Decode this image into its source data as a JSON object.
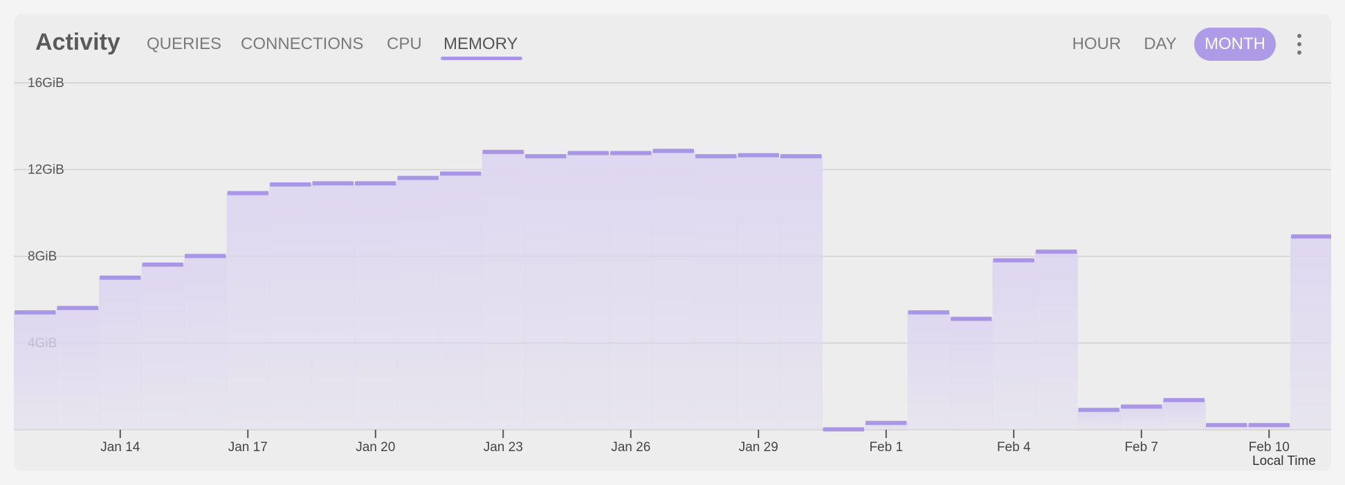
{
  "header": {
    "title": "Activity",
    "tabs": [
      {
        "label": "QUERIES",
        "active": false
      },
      {
        "label": "CONNECTIONS",
        "active": false
      },
      {
        "label": "CPU",
        "active": false
      },
      {
        "label": "MEMORY",
        "active": true
      }
    ],
    "ranges": [
      {
        "label": "HOUR",
        "active": false
      },
      {
        "label": "DAY",
        "active": false
      },
      {
        "label": "MONTH",
        "active": true
      }
    ],
    "menu_icon": "more-vertical-icon"
  },
  "colors": {
    "accent": "#a996e6",
    "fill": "#ddd6f0",
    "grid": "#d0d0d0"
  },
  "chart_data": {
    "type": "area",
    "step": true,
    "y_unit": "GiB",
    "ylim": [
      0,
      16
    ],
    "y_ticks": [
      {
        "value": 4,
        "label": "4GiB"
      },
      {
        "value": 8,
        "label": "8GiB"
      },
      {
        "value": 12,
        "label": "12GiB"
      },
      {
        "value": 16,
        "label": "16GiB"
      }
    ],
    "x_ticks": [
      "Jan 14",
      "Jan 17",
      "Jan 20",
      "Jan 23",
      "Jan 26",
      "Jan 29",
      "Feb 1",
      "Feb 4",
      "Feb 7",
      "Feb 10"
    ],
    "x_unit_label": "Local Time",
    "series": [
      {
        "x": [
          "Jan 12",
          "Jan 13",
          "Jan 14",
          "Jan 15",
          "Jan 16",
          "Jan 17",
          "Jan 18",
          "Jan 19",
          "Jan 20",
          "Jan 21",
          "Jan 22",
          "Jan 23",
          "Jan 24",
          "Jan 25",
          "Jan 26",
          "Jan 27",
          "Jan 28",
          "Jan 29",
          "Jan 30",
          "Jan 31",
          "Feb 1",
          "Feb 2",
          "Feb 3",
          "Feb 4",
          "Feb 5",
          "Feb 6",
          "Feb 7",
          "Feb 8",
          "Feb 9",
          "Feb 10",
          "Feb 11"
        ],
        "values": [
          5.4,
          5.6,
          7.0,
          7.6,
          8.0,
          10.9,
          11.3,
          11.35,
          11.35,
          11.6,
          11.8,
          12.8,
          12.6,
          12.75,
          12.75,
          12.85,
          12.6,
          12.65,
          12.6,
          0.0,
          0.3,
          5.4,
          5.1,
          7.8,
          8.2,
          0.9,
          1.05,
          1.35,
          0.2,
          0.2,
          8.9
        ]
      }
    ]
  }
}
